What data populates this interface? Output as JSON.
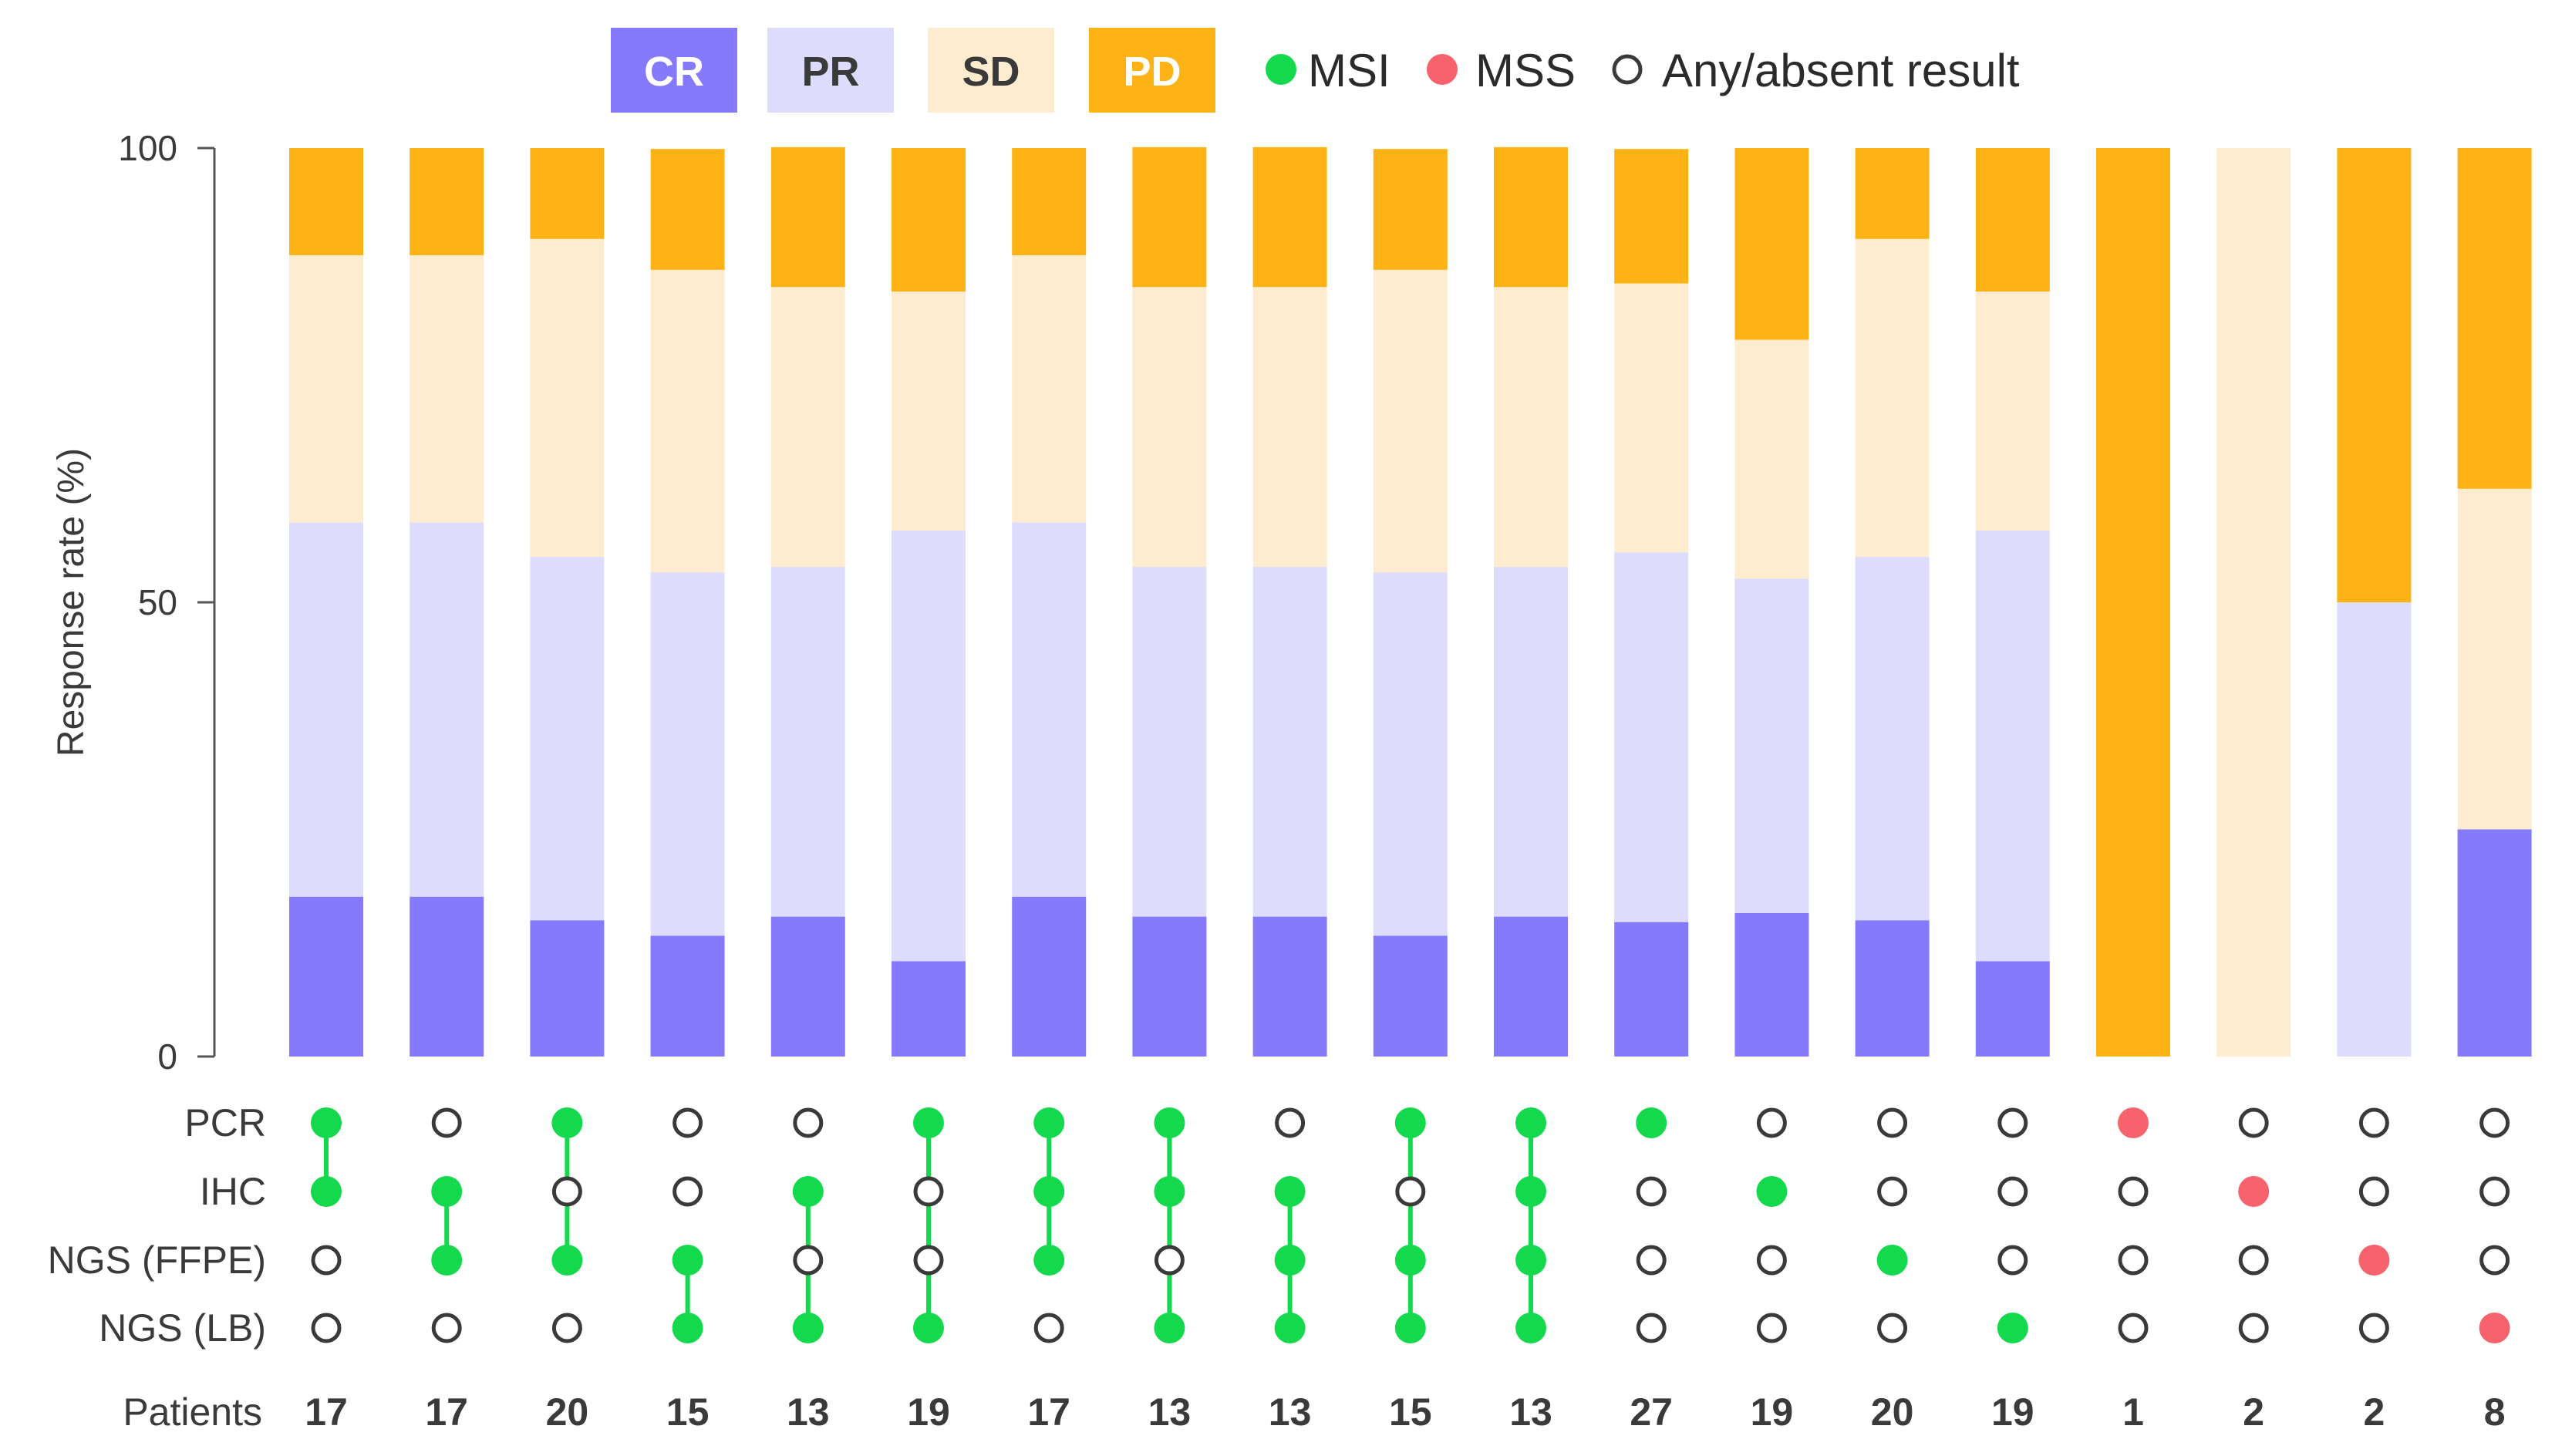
{
  "chart_data": {
    "type": "bar",
    "stacked": true,
    "ylabel": "Response rate (%)",
    "ylim": [
      0,
      100
    ],
    "yticks": [
      "0",
      "50",
      "100"
    ],
    "legend": [
      {
        "key": "CR",
        "label": "CR",
        "color": "#8579fc",
        "text_color": "#ffffff"
      },
      {
        "key": "PR",
        "label": "PR",
        "color": "#dedcfd",
        "text_color": "#3a3a3a"
      },
      {
        "key": "SD",
        "label": "SD",
        "color": "#fdecd0",
        "text_color": "#3a3a3a"
      },
      {
        "key": "PD",
        "label": "PD",
        "color": "#fdb215",
        "text_color": "#ffffff"
      }
    ],
    "marker_legend": [
      {
        "key": "MSI",
        "label": "MSI",
        "color": "#14d94d",
        "style": "filled"
      },
      {
        "key": "MSS",
        "label": "MSS",
        "color": "#f6636c",
        "style": "filled"
      },
      {
        "key": "any",
        "label": "Any/absent result",
        "color": "#3a3a3a",
        "style": "open"
      }
    ],
    "series": [
      {
        "name": "CR",
        "values": [
          17.6,
          17.6,
          15,
          13.3,
          15.4,
          10.5,
          17.6,
          15.4,
          15.4,
          13.3,
          15.4,
          14.8,
          15.8,
          15,
          10.5,
          0,
          0,
          0,
          25
        ]
      },
      {
        "name": "PR",
        "values": [
          41.2,
          41.2,
          40,
          40,
          38.5,
          47.4,
          41.2,
          38.5,
          38.5,
          40,
          38.5,
          40.7,
          36.8,
          40,
          47.4,
          0,
          0,
          50,
          0
        ]
      },
      {
        "name": "SD",
        "values": [
          29.4,
          29.4,
          35,
          33.3,
          30.8,
          26.3,
          29.4,
          30.8,
          30.8,
          33.3,
          30.8,
          29.6,
          26.3,
          35,
          26.3,
          0,
          100,
          0,
          37.5
        ]
      },
      {
        "name": "PD",
        "values": [
          11.8,
          11.8,
          10,
          13.3,
          15.4,
          15.8,
          11.8,
          15.4,
          15.4,
          13.3,
          15.4,
          14.8,
          21.1,
          10,
          15.8,
          100,
          0,
          50,
          37.5
        ]
      }
    ],
    "matrix_rows": [
      "PCR",
      "IHC",
      "NGS (FFPE)",
      "NGS (LB)"
    ],
    "matrix": [
      [
        "MSI",
        "MSI",
        "any",
        "any"
      ],
      [
        "any",
        "MSI",
        "MSI",
        "any"
      ],
      [
        "MSI",
        "any",
        "MSI",
        "any"
      ],
      [
        "any",
        "any",
        "MSI",
        "MSI"
      ],
      [
        "any",
        "MSI",
        "any",
        "MSI"
      ],
      [
        "MSI",
        "any",
        "any",
        "MSI"
      ],
      [
        "MSI",
        "MSI",
        "MSI",
        "any"
      ],
      [
        "MSI",
        "MSI",
        "any",
        "MSI"
      ],
      [
        "any",
        "MSI",
        "MSI",
        "MSI"
      ],
      [
        "MSI",
        "any",
        "MSI",
        "MSI"
      ],
      [
        "MSI",
        "MSI",
        "MSI",
        "MSI"
      ],
      [
        "MSI",
        "any",
        "any",
        "any"
      ],
      [
        "any",
        "MSI",
        "any",
        "any"
      ],
      [
        "any",
        "any",
        "MSI",
        "any"
      ],
      [
        "any",
        "any",
        "any",
        "MSI"
      ],
      [
        "MSS",
        "any",
        "any",
        "any"
      ],
      [
        "any",
        "MSS",
        "any",
        "any"
      ],
      [
        "any",
        "any",
        "MSS",
        "any"
      ],
      [
        "any",
        "any",
        "any",
        "MSS"
      ]
    ],
    "patients_label": "Patients",
    "patients": [
      "17",
      "17",
      "20",
      "15",
      "13",
      "19",
      "17",
      "13",
      "13",
      "15",
      "13",
      "27",
      "19",
      "20",
      "19",
      "1",
      "2",
      "2",
      "8"
    ]
  }
}
